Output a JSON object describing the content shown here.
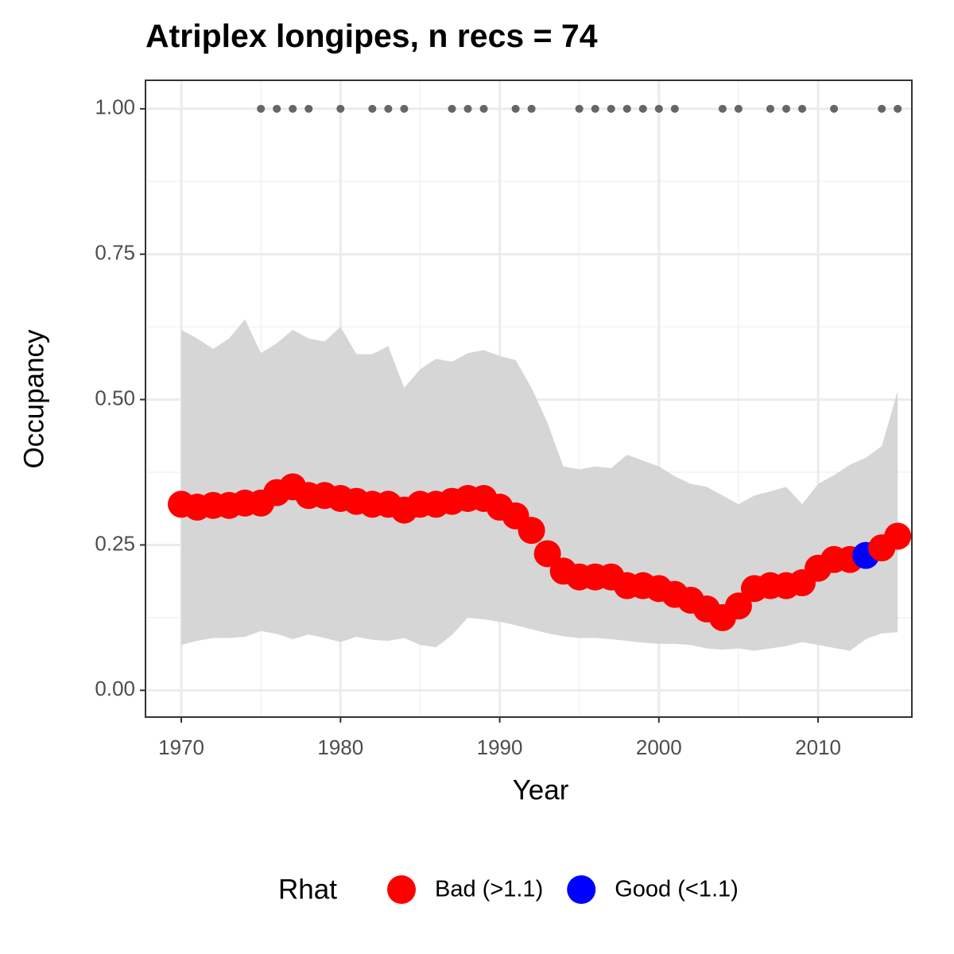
{
  "chart_data": {
    "type": "ribbon-points",
    "title": "Atriplex longipes, n recs = 74",
    "x_label": "Year",
    "y_label": "Occupancy",
    "x": [
      1970,
      1971,
      1972,
      1973,
      1974,
      1975,
      1976,
      1977,
      1978,
      1979,
      1980,
      1981,
      1982,
      1983,
      1984,
      1985,
      1986,
      1987,
      1988,
      1989,
      1990,
      1991,
      1992,
      1993,
      1994,
      1995,
      1996,
      1997,
      1998,
      1999,
      2000,
      2001,
      2002,
      2003,
      2004,
      2005,
      2006,
      2007,
      2008,
      2009,
      2010,
      2011,
      2012,
      2013,
      2014,
      2015
    ],
    "values": [
      0.32,
      0.315,
      0.318,
      0.318,
      0.322,
      0.322,
      0.34,
      0.35,
      0.335,
      0.335,
      0.33,
      0.325,
      0.32,
      0.32,
      0.31,
      0.32,
      0.32,
      0.325,
      0.33,
      0.33,
      0.315,
      0.3,
      0.275,
      0.235,
      0.205,
      0.195,
      0.195,
      0.195,
      0.18,
      0.18,
      0.175,
      0.165,
      0.155,
      0.14,
      0.125,
      0.145,
      0.175,
      0.18,
      0.18,
      0.185,
      0.21,
      0.225,
      0.225,
      0.232,
      0.245,
      0.265
    ],
    "upper": [
      0.62,
      0.605,
      0.587,
      0.605,
      0.638,
      0.58,
      0.597,
      0.62,
      0.605,
      0.6,
      0.625,
      0.578,
      0.578,
      0.592,
      0.52,
      0.552,
      0.57,
      0.565,
      0.58,
      0.585,
      0.575,
      0.568,
      0.52,
      0.46,
      0.385,
      0.38,
      0.385,
      0.382,
      0.405,
      0.395,
      0.385,
      0.368,
      0.355,
      0.35,
      0.335,
      0.32,
      0.335,
      0.342,
      0.35,
      0.32,
      0.355,
      0.37,
      0.388,
      0.4,
      0.42,
      0.515
    ],
    "lower": [
      0.078,
      0.085,
      0.09,
      0.09,
      0.092,
      0.102,
      0.097,
      0.088,
      0.096,
      0.09,
      0.083,
      0.092,
      0.087,
      0.085,
      0.09,
      0.078,
      0.074,
      0.095,
      0.125,
      0.122,
      0.118,
      0.112,
      0.105,
      0.098,
      0.093,
      0.09,
      0.09,
      0.088,
      0.085,
      0.082,
      0.08,
      0.08,
      0.078,
      0.072,
      0.07,
      0.072,
      0.068,
      0.072,
      0.076,
      0.083,
      0.078,
      0.073,
      0.068,
      0.088,
      0.098,
      0.1
    ],
    "rhat": [
      "Bad (>1.1)",
      "Bad (>1.1)",
      "Bad (>1.1)",
      "Bad (>1.1)",
      "Bad (>1.1)",
      "Bad (>1.1)",
      "Bad (>1.1)",
      "Bad (>1.1)",
      "Bad (>1.1)",
      "Bad (>1.1)",
      "Bad (>1.1)",
      "Bad (>1.1)",
      "Bad (>1.1)",
      "Bad (>1.1)",
      "Bad (>1.1)",
      "Bad (>1.1)",
      "Bad (>1.1)",
      "Bad (>1.1)",
      "Bad (>1.1)",
      "Bad (>1.1)",
      "Bad (>1.1)",
      "Bad (>1.1)",
      "Bad (>1.1)",
      "Bad (>1.1)",
      "Bad (>1.1)",
      "Bad (>1.1)",
      "Bad (>1.1)",
      "Bad (>1.1)",
      "Bad (>1.1)",
      "Bad (>1.1)",
      "Bad (>1.1)",
      "Bad (>1.1)",
      "Bad (>1.1)",
      "Bad (>1.1)",
      "Bad (>1.1)",
      "Bad (>1.1)",
      "Bad (>1.1)",
      "Bad (>1.1)",
      "Bad (>1.1)",
      "Bad (>1.1)",
      "Bad (>1.1)",
      "Bad (>1.1)",
      "Bad (>1.1)",
      "Good (<1.1)",
      "Bad (>1.1)",
      "Bad (>1.1)"
    ],
    "ribbon_color": "#d6d6d6",
    "records_x": [
      1975,
      1976,
      1977,
      1978,
      1980,
      1982,
      1983,
      1984,
      1987,
      1988,
      1989,
      1991,
      1992,
      1995,
      1996,
      1997,
      1998,
      1999,
      2000,
      2001,
      2004,
      2005,
      2007,
      2008,
      2009,
      2011,
      2014,
      2015
    ],
    "records_y": 1,
    "records_color": "#666666",
    "legend": {
      "title": "Rhat",
      "position": "bottom",
      "entries": [
        {
          "name": "Bad (>1.1)",
          "color": "#ff0000"
        },
        {
          "name": "Good (<1.1)",
          "color": "#0000ff"
        }
      ]
    },
    "xlim": [
      1967.75,
      2015.89
    ],
    "ylim": [
      -0.046,
      1.049
    ],
    "xticks": [
      1970,
      1980,
      1990,
      2000,
      2010
    ],
    "yticks": [
      {
        "value": 0,
        "label": "0.00"
      },
      {
        "value": 0.25,
        "label": "0.25"
      },
      {
        "value": 0.5,
        "label": "0.50"
      },
      {
        "value": 0.75,
        "label": "0.75"
      },
      {
        "value": 1,
        "label": "1.00"
      }
    ],
    "grid": true
  }
}
